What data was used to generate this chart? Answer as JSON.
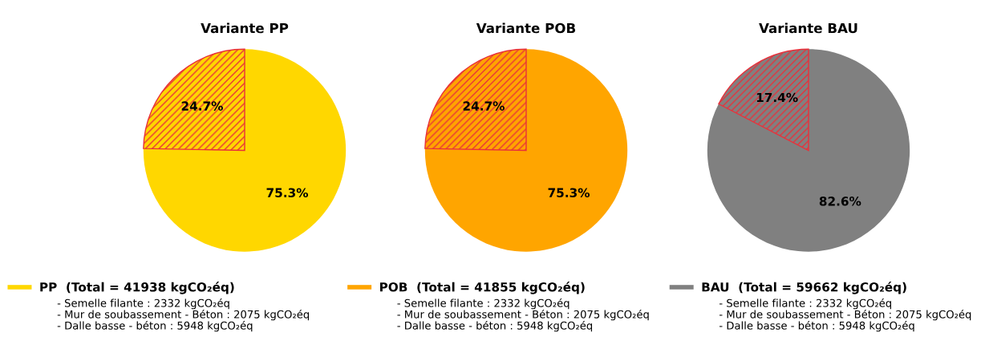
{
  "chart_data": [
    {
      "type": "pie",
      "title": "Variante PP",
      "categories": [
        null,
        "PP  (Total = 41938 kgCO₂éq)"
      ],
      "values": [
        24.7,
        75.3
      ],
      "value_labels": [
        "24.7%",
        "75.3%"
      ],
      "colors": [
        "#ffd700",
        "#ffd700"
      ],
      "legend": "bottom",
      "annotations": [
        "- Semelle filante : 2332 kgCO₂éq",
        "- Mur de soubassement - Béton : 2075 kgCO₂éq",
        "- Dalle basse - béton : 5948 kgCO₂éq"
      ]
    },
    {
      "type": "pie",
      "title": "Variante POB",
      "categories": [
        null,
        "POB  (Total = 41855 kgCO₂éq)"
      ],
      "values": [
        24.7,
        75.3
      ],
      "value_labels": [
        "24.7%",
        "75.3%"
      ],
      "colors": [
        "#ffa500",
        "#ffa500"
      ],
      "legend": "bottom",
      "annotations": [
        "- Semelle filante : 2332 kgCO₂éq",
        "- Mur de soubassement - Béton : 2075 kgCO₂éq",
        "- Dalle basse - béton : 5948 kgCO₂éq"
      ]
    },
    {
      "type": "pie",
      "title": "Variante BAU",
      "categories": [
        null,
        "BAU  (Total = 59662 kgCO₂éq)"
      ],
      "values": [
        17.4,
        82.6
      ],
      "value_labels": [
        "17.4%",
        "82.6%"
      ],
      "colors": [
        "#808080",
        "#808080"
      ],
      "legend": "bottom",
      "annotations": [
        "- Semelle filante : 2332 kgCO₂éq",
        "- Mur de soubassement - Béton : 2075 kgCO₂éq",
        "- Dalle basse - béton : 5948 kgCO₂éq"
      ]
    }
  ]
}
